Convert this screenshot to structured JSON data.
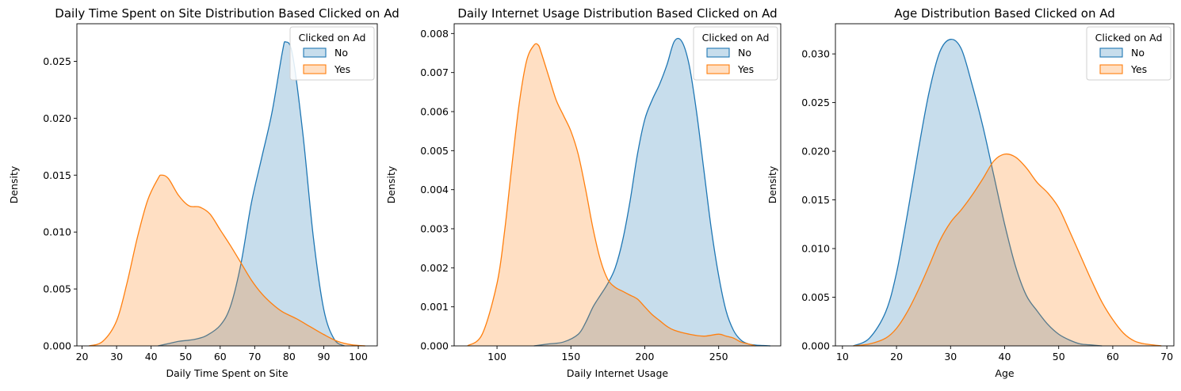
{
  "chart_data": [
    {
      "type": "area",
      "title": "Daily Time Spent on Site Distribution Based Clicked on Ad",
      "xlabel": "Daily Time Spent on Site",
      "ylabel": "Density",
      "xlim": [
        18.5,
        105.5
      ],
      "ylim": [
        0,
        0.0283
      ],
      "xticks": [
        20,
        30,
        40,
        50,
        60,
        70,
        80,
        90,
        100
      ],
      "yticks": [
        0.0,
        0.005,
        0.01,
        0.015,
        0.02,
        0.025
      ],
      "ytick_labels": [
        "0.000",
        "0.005",
        "0.010",
        "0.015",
        "0.020",
        "0.025"
      ],
      "legend": {
        "title": "Clicked on Ad",
        "placement": "top-right"
      },
      "series": [
        {
          "name": "No",
          "x": [
            42,
            45,
            48,
            51,
            53,
            56,
            60,
            63,
            66,
            69,
            72,
            75,
            78,
            79,
            81,
            84,
            87,
            90,
            93,
            96
          ],
          "y": [
            0,
            0.0002,
            0.0004,
            0.0005,
            0.0006,
            0.0009,
            0.0018,
            0.0035,
            0.0072,
            0.0125,
            0.0165,
            0.0205,
            0.0258,
            0.0267,
            0.0255,
            0.0185,
            0.0095,
            0.0032,
            0.0006,
            0
          ]
        },
        {
          "name": "Yes",
          "x": [
            22,
            26,
            30,
            33,
            36,
            39,
            42,
            43,
            45,
            48,
            51,
            54,
            57,
            60,
            63,
            66,
            69,
            72,
            75,
            78,
            82,
            86,
            90,
            94,
            98,
            102
          ],
          "y": [
            0,
            0.0004,
            0.0022,
            0.0055,
            0.0095,
            0.0128,
            0.0147,
            0.015,
            0.0147,
            0.0132,
            0.0123,
            0.0122,
            0.0116,
            0.0102,
            0.0088,
            0.0073,
            0.0058,
            0.0046,
            0.0037,
            0.003,
            0.0024,
            0.0017,
            0.001,
            0.0004,
            0.0001,
            0
          ]
        }
      ]
    },
    {
      "type": "area",
      "title": "Daily Internet Usage Distribution Based Clicked on Ad",
      "xlabel": "Daily Internet Usage",
      "ylabel": "Density",
      "xlim": [
        71,
        292
      ],
      "ylim": [
        0,
        0.00825
      ],
      "xticks": [
        100,
        150,
        200,
        250
      ],
      "yticks": [
        0.0,
        0.001,
        0.002,
        0.003,
        0.004,
        0.005,
        0.006,
        0.007,
        0.008
      ],
      "ytick_labels": [
        "0.000",
        "0.001",
        "0.002",
        "0.003",
        "0.004",
        "0.005",
        "0.006",
        "0.007",
        "0.008"
      ],
      "legend": {
        "title": "Clicked on Ad",
        "placement": "top-right"
      },
      "series": [
        {
          "name": "No",
          "x": [
            125,
            135,
            145,
            155,
            160,
            165,
            170,
            175,
            180,
            185,
            190,
            195,
            200,
            205,
            210,
            215,
            220,
            225,
            230,
            235,
            240,
            245,
            250,
            255,
            260,
            265,
            270,
            275,
            280,
            285
          ],
          "y": [
            0,
            5e-05,
            0.0001,
            0.0003,
            0.0006,
            0.001,
            0.0013,
            0.0016,
            0.002,
            0.0027,
            0.0037,
            0.0049,
            0.0058,
            0.0063,
            0.0067,
            0.0072,
            0.0078,
            0.0078,
            0.0072,
            0.006,
            0.0045,
            0.003,
            0.0018,
            0.0009,
            0.0004,
            0.00015,
            5e-05,
            2e-05,
            1e-05,
            0
          ]
        },
        {
          "name": "Yes",
          "x": [
            80,
            90,
            100,
            105,
            110,
            115,
            120,
            125,
            128,
            130,
            135,
            140,
            145,
            150,
            155,
            160,
            165,
            170,
            175,
            180,
            185,
            190,
            195,
            200,
            205,
            210,
            215,
            220,
            230,
            240,
            250,
            255,
            260,
            265,
            270,
            275
          ],
          "y": [
            0,
            0.0003,
            0.0016,
            0.0029,
            0.0046,
            0.0062,
            0.0073,
            0.0077,
            0.0077,
            0.0075,
            0.0069,
            0.0063,
            0.0059,
            0.0055,
            0.0049,
            0.004,
            0.003,
            0.0022,
            0.0017,
            0.0015,
            0.0014,
            0.0013,
            0.0012,
            0.001,
            0.0008,
            0.00065,
            0.0005,
            0.0004,
            0.0003,
            0.00025,
            0.0003,
            0.00025,
            0.0002,
            0.0001,
            5e-05,
            0
          ]
        }
      ]
    },
    {
      "type": "area",
      "title": "Age Distribution Based Clicked on Ad",
      "xlabel": "Age",
      "ylabel": "Density",
      "xlim": [
        8.7,
        71.3
      ],
      "ylim": [
        0,
        0.0331
      ],
      "xticks": [
        10,
        20,
        30,
        40,
        50,
        60,
        70
      ],
      "yticks": [
        0.0,
        0.005,
        0.01,
        0.015,
        0.02,
        0.025,
        0.03
      ],
      "ytick_labels": [
        "0.000",
        "0.005",
        "0.010",
        "0.015",
        "0.020",
        "0.025",
        "0.030"
      ],
      "legend": {
        "title": "Clicked on Ad",
        "placement": "top-right"
      },
      "series": [
        {
          "name": "No",
          "x": [
            12,
            15,
            18,
            20,
            22,
            24,
            26,
            28,
            30,
            32,
            34,
            36,
            38,
            40,
            42,
            44,
            46,
            48,
            50,
            52,
            54,
            56,
            58
          ],
          "y": [
            0,
            0.0008,
            0.0035,
            0.0075,
            0.0135,
            0.02,
            0.026,
            0.0302,
            0.0315,
            0.0305,
            0.0268,
            0.0225,
            0.0175,
            0.0125,
            0.0082,
            0.0052,
            0.0036,
            0.0022,
            0.0012,
            0.0006,
            0.0002,
            0.0001,
            0
          ]
        },
        {
          "name": "Yes",
          "x": [
            12,
            15,
            18,
            20,
            22,
            24,
            26,
            28,
            30,
            32,
            34,
            36,
            38,
            40,
            42,
            44,
            46,
            48,
            50,
            52,
            54,
            56,
            58,
            60,
            62,
            64,
            66,
            69
          ],
          "y": [
            0,
            0.0002,
            0.0008,
            0.0018,
            0.0035,
            0.0057,
            0.0082,
            0.0108,
            0.0127,
            0.014,
            0.0155,
            0.0172,
            0.019,
            0.0197,
            0.0194,
            0.0183,
            0.0168,
            0.0157,
            0.0142,
            0.0118,
            0.0093,
            0.0068,
            0.0045,
            0.0027,
            0.0013,
            0.0005,
            0.0002,
            0
          ]
        }
      ]
    }
  ],
  "colors": {
    "No": {
      "line": "#1f77b4",
      "fill": "#1f77b4"
    },
    "Yes": {
      "line": "#ff7f0e",
      "fill": "#ff7f0e"
    }
  }
}
